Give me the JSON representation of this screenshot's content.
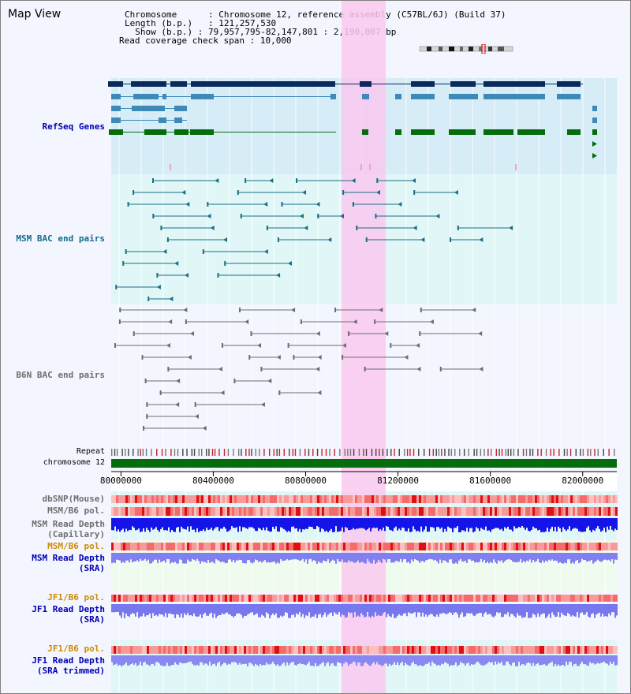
{
  "title": "Map View",
  "info": {
    "chromosome_key": "Chromosome",
    "chromosome_value": ": Chromosome 12, reference assembly (C57BL/6J) (Build 37)",
    "length_key": "Length (b.p.)",
    "length_value": ": 121,257,530",
    "show_key": "Show (b.p.)",
    "show_value": ": 79,957,795-82,147,801 : 2,190,007 bp",
    "coverage_key": "Read coverage check span",
    "coverage_value": ": 10,000"
  },
  "tracks": {
    "refseq": "RefSeq Genes",
    "msm_bac": "MSM BAC end pairs",
    "b6n_bac": "B6N BAC end pairs",
    "repeat": "Repeat",
    "chromosome": "chromosome 12",
    "dbsnp": "dbSNP(Mouse)",
    "msm_b6_pol_1": "MSM/B6 pol.",
    "msm_read_depth_cap_1": "MSM Read Depth",
    "msm_read_depth_cap_2": "(Capillary)",
    "msm_b6_pol_2": "MSM/B6 pol.",
    "msm_read_depth_sra_1": "MSM Read Depth",
    "msm_read_depth_sra_2": "(SRA)",
    "jf1_b6_pol_1": "JF1/B6 pol.",
    "jf1_read_depth_sra_1": "JF1 Read Depth",
    "jf1_read_depth_sra_2": "(SRA)",
    "jf1_b6_pol_2": "JF1/B6 pol.",
    "jf1_read_depth_trim_1": "JF1 Read Depth",
    "jf1_read_depth_trim_2": "(SRA trimmed)"
  },
  "axis_ticks": [
    "80000000",
    "80400000",
    "80800000",
    "81200000",
    "81600000",
    "82000000"
  ],
  "colors": {
    "refseq_dark": "#0a2a5c",
    "refseq_mid": "#3d8ab8",
    "refseq_green": "#056d0b",
    "msm_line": "#1b6e86",
    "b6n_line": "#6e6e6e",
    "highlight": "#f9c9ee",
    "label_blue": "#0000b3",
    "label_teal": "#126c87",
    "label_orange": "#d08a00",
    "label_gray": "#6e6e6e"
  }
}
